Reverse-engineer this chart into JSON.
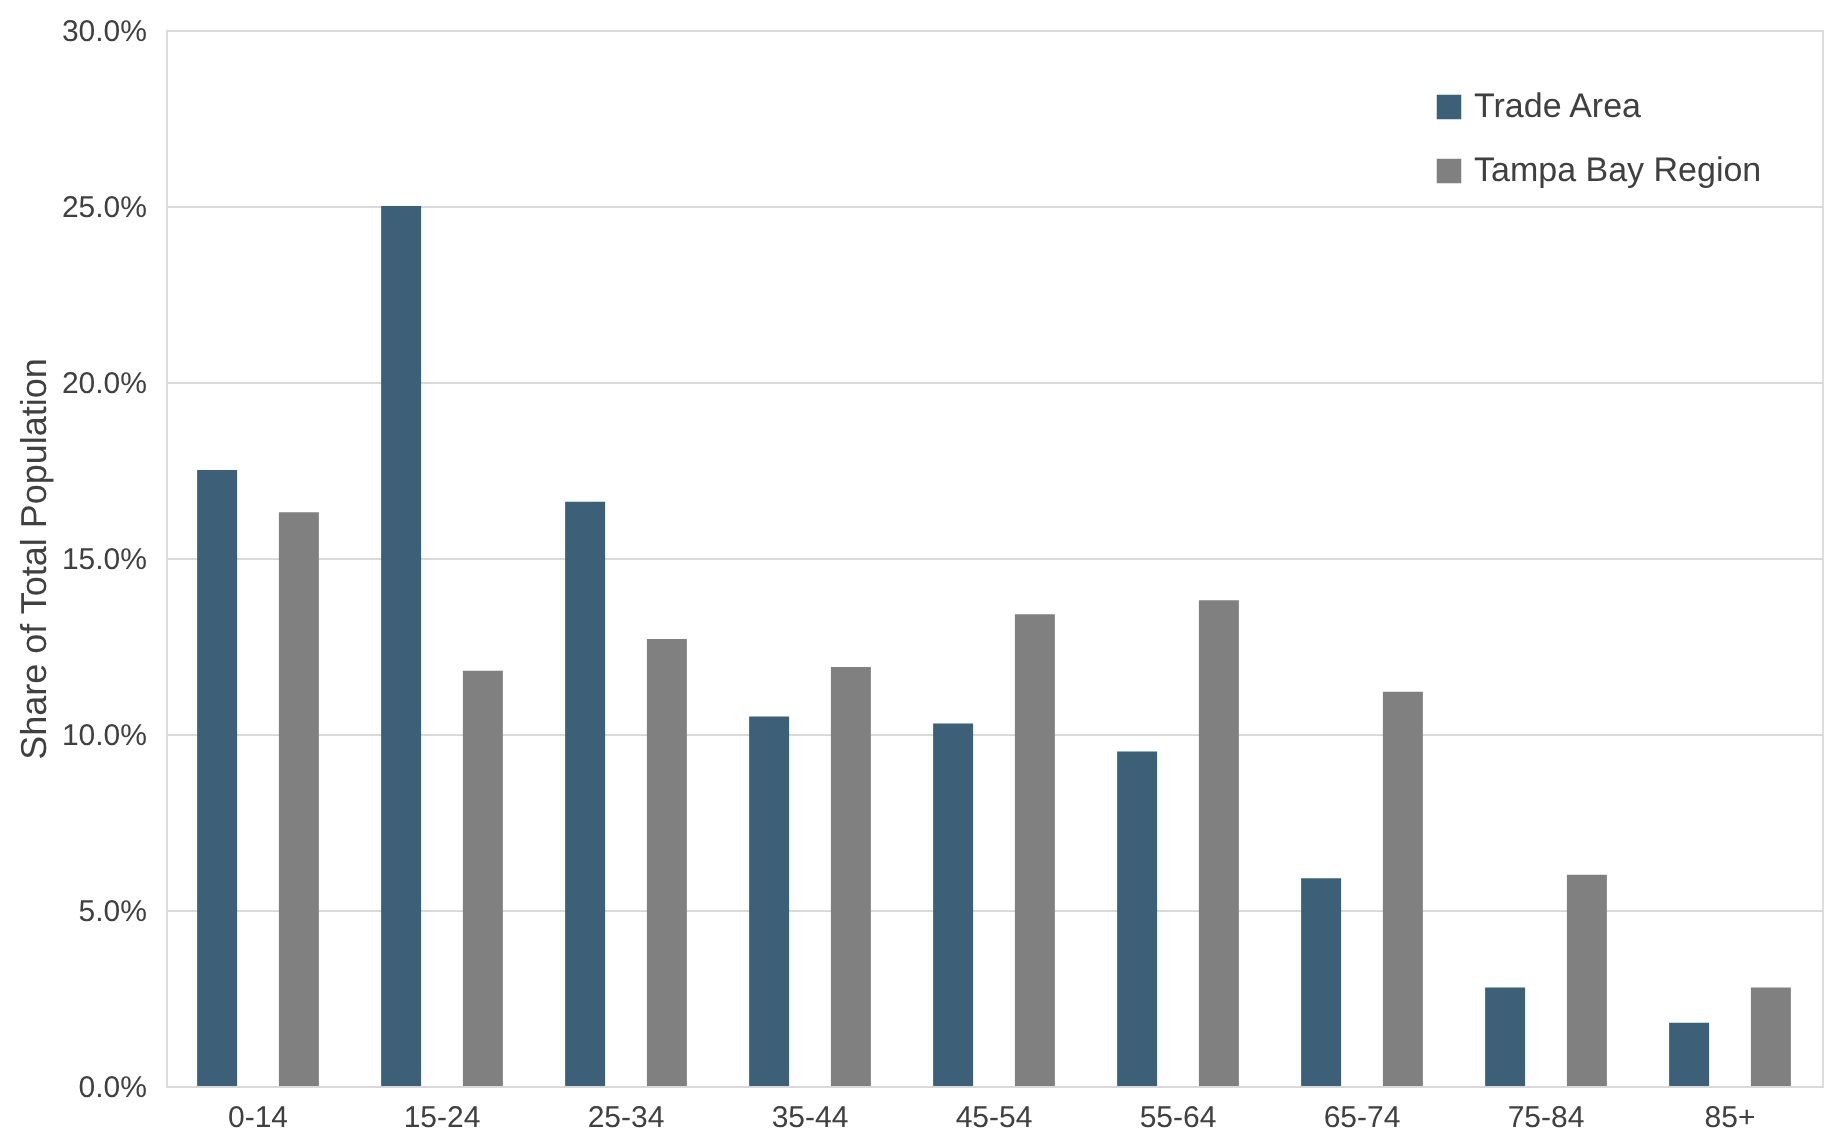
{
  "chart_data": {
    "type": "bar",
    "ylabel": "Share of Total Population",
    "categories": [
      "0-14",
      "15-24",
      "25-34",
      "35-44",
      "45-54",
      "55-64",
      "65-74",
      "75-84",
      "85+"
    ],
    "series": [
      {
        "name": "Trade Area",
        "color": "#3b6078",
        "values": [
          17.5,
          25.0,
          16.6,
          10.5,
          10.3,
          9.5,
          5.9,
          2.8,
          1.8
        ]
      },
      {
        "name": "Tampa Bay Region",
        "color": "#808080",
        "values": [
          16.3,
          11.8,
          12.7,
          11.9,
          13.4,
          13.8,
          11.2,
          6.0,
          2.8
        ]
      }
    ],
    "ylim": [
      0,
      30
    ],
    "yticks": [
      {
        "value": 0,
        "label": "0.0%"
      },
      {
        "value": 5,
        "label": "5.0%"
      },
      {
        "value": 10,
        "label": "10.0%"
      },
      {
        "value": 15,
        "label": "15.0%"
      },
      {
        "value": 20,
        "label": "20.0%"
      },
      {
        "value": 25,
        "label": "25.0%"
      },
      {
        "value": 30,
        "label": "30.0%"
      }
    ],
    "grid": "y",
    "legend": "top right"
  }
}
